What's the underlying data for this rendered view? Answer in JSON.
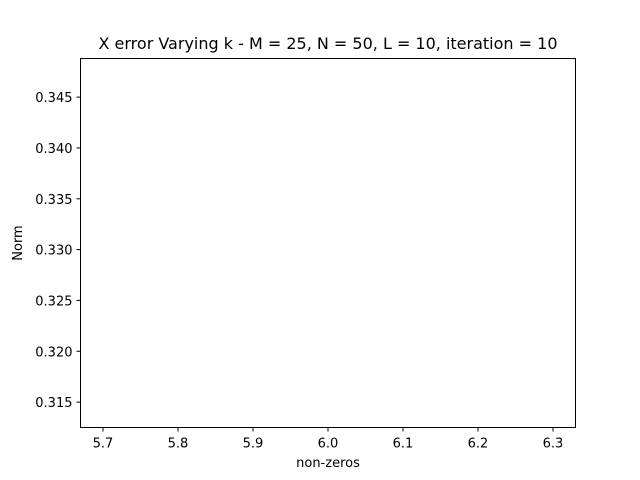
{
  "chart_data": {
    "type": "line",
    "title": "X error Varying k - M = 25, N = 50, L = 10, iteration = 10",
    "xlabel": "non-zeros",
    "ylabel": "Norm",
    "xlim": [
      5.67,
      6.33
    ],
    "ylim": [
      0.3125,
      0.3488
    ],
    "x_ticks": [
      5.7,
      5.8,
      5.9,
      6.0,
      6.1,
      6.2,
      6.3
    ],
    "x_tick_labels": [
      "5.7",
      "5.8",
      "5.9",
      "6.0",
      "6.1",
      "6.2",
      "6.3"
    ],
    "y_ticks": [
      0.315,
      0.32,
      0.325,
      0.33,
      0.335,
      0.34,
      0.345
    ],
    "y_tick_labels": [
      "0.315",
      "0.320",
      "0.325",
      "0.330",
      "0.335",
      "0.340",
      "0.345"
    ],
    "series": [],
    "grid": false,
    "legend": "none"
  }
}
